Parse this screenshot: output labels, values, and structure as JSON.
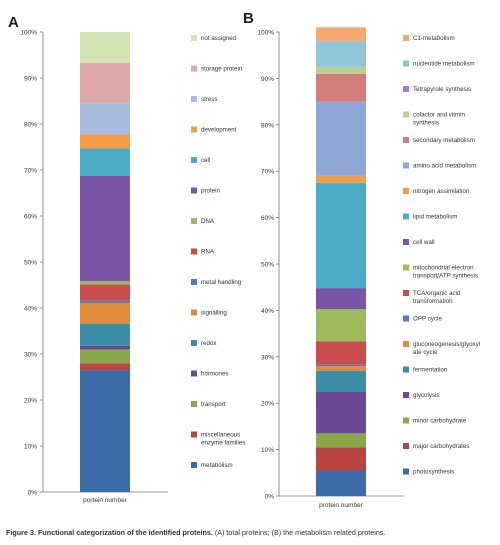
{
  "panels": [
    {
      "letter": "A",
      "xlabel": "portein number",
      "yticks": [
        "0%",
        "10%",
        "20%",
        "30%",
        "40%",
        "50%",
        "60%",
        "70%",
        "80%",
        "90%",
        "100%"
      ]
    },
    {
      "letter": "B",
      "xlabel": "protein number",
      "yticks": [
        "0%",
        "10%",
        "20%",
        "30%",
        "40%",
        "50%",
        "60%",
        "70%",
        "80%",
        "90%",
        "100%"
      ]
    }
  ],
  "chart_data": [
    {
      "type": "bar",
      "stacked": true,
      "percent": true,
      "categories": [
        "portein number"
      ],
      "ylim": [
        0,
        100
      ],
      "grid": false,
      "legend_position": "right",
      "series": [
        {
          "name": "metabolism",
          "color": "#3d6aa8",
          "values": [
            26.5
          ]
        },
        {
          "name": "miscellaneous enzyme families",
          "color": "#b94440",
          "values": [
            1.5
          ]
        },
        {
          "name": "transport",
          "color": "#89a849",
          "values": [
            3.0
          ]
        },
        {
          "name": "hormones",
          "color": "#6c4a95",
          "values": [
            0.8
          ]
        },
        {
          "name": "redox",
          "color": "#3a8fa6",
          "values": [
            4.8
          ]
        },
        {
          "name": "signalling",
          "color": "#e08a3a",
          "values": [
            4.5
          ]
        },
        {
          "name": "metal handling",
          "color": "#4c7cc4",
          "values": [
            0.5
          ]
        },
        {
          "name": "RNA",
          "color": "#c94d4a",
          "values": [
            3.5
          ]
        },
        {
          "name": "DNA",
          "color": "#9dbb5d",
          "values": [
            0.7
          ]
        },
        {
          "name": "protein",
          "color": "#7b56a8",
          "values": [
            22.9
          ]
        },
        {
          "name": "cell",
          "color": "#4bacc6",
          "values": [
            6.0
          ]
        },
        {
          "name": "development",
          "color": "#f49c46",
          "values": [
            3.0
          ]
        },
        {
          "name": "stress",
          "color": "#a9bbdf",
          "values": [
            6.8
          ]
        },
        {
          "name": "storage protein",
          "color": "#deaaaa",
          "values": [
            8.8
          ]
        },
        {
          "name": "not assigned",
          "color": "#d2e3b4",
          "values": [
            6.7
          ]
        }
      ]
    },
    {
      "type": "bar",
      "stacked": true,
      "percent": true,
      "categories": [
        "protein number"
      ],
      "ylim": [
        0,
        100
      ],
      "grid": false,
      "legend_position": "right",
      "series": [
        {
          "name": "photosynthesis",
          "color": "#3d6aa8",
          "values": [
            5.5
          ]
        },
        {
          "name": "major carbohydrates",
          "color": "#b94440",
          "values": [
            5.0
          ]
        },
        {
          "name": "minor carbohydrate",
          "color": "#89a849",
          "values": [
            3.0
          ]
        },
        {
          "name": "glycolysis",
          "color": "#6c4a95",
          "values": [
            9.0
          ]
        },
        {
          "name": "fermentation",
          "color": "#3a8fa6",
          "values": [
            4.5
          ]
        },
        {
          "name": "gluconeogenesis/glyoxylate cycle",
          "color": "#e08a3a",
          "values": [
            1.0
          ]
        },
        {
          "name": "OPP cycle",
          "color": "#4c7cc4",
          "values": [
            0.3
          ]
        },
        {
          "name": "TCA/organic acid transformation",
          "color": "#c94d4a",
          "values": [
            5.0
          ]
        },
        {
          "name": "mitochondrial electron transport/ATP synthesis",
          "color": "#9dbb5d",
          "values": [
            7.0
          ]
        },
        {
          "name": "cell wall",
          "color": "#7b56a8",
          "values": [
            4.5
          ]
        },
        {
          "name": "lipid metabolism",
          "color": "#4bacc6",
          "values": [
            22.7
          ]
        },
        {
          "name": "nitrogen assimilation",
          "color": "#f49c46",
          "values": [
            1.5
          ]
        },
        {
          "name": "amino acid metabolism",
          "color": "#8fa7d6",
          "values": [
            16.0
          ]
        },
        {
          "name": "secondary metabolism",
          "color": "#d27d7b",
          "values": [
            6.0
          ]
        },
        {
          "name": "cofactor and vitmin synthesis",
          "color": "#b9d08e",
          "values": [
            1.5
          ]
        },
        {
          "name": "Tetrapyrole synthesis",
          "color": "#9c82c0",
          "values": [
            0.0
          ]
        },
        {
          "name": "nucleotide metabolism",
          "color": "#8fc6dc",
          "values": [
            5.5
          ]
        },
        {
          "name": "C1-metabolism",
          "color": "#f6a96c",
          "values": [
            3.0
          ]
        }
      ]
    }
  ],
  "legend_text": [
    [
      "not assigned",
      "storage protein",
      "stress",
      "development",
      "cell",
      "protein",
      "DNA",
      "RNA",
      "metal handling",
      "signalling",
      "redox",
      "hormones",
      "transport",
      "miscellaneous\nenzyme families",
      "metabolism"
    ],
    [
      "C1-metabolism",
      "nucleotide metabolism",
      "Tetrapyrole synthesis",
      "cofactor and vitmin\nsynthesis",
      "secondary metabolism",
      "amino acid metabolism",
      "nitrogen assimilation",
      "lipid metabolism",
      "cell wall",
      "mitochondrial electron\ntransport/ATP synthesis",
      "TCA/organic acid\ntransformation",
      "OPP cycle",
      "gluconeogenesis/glyoxyl\nate cycle",
      "fermentation",
      "glycolysis",
      "minor carbohydrate",
      "major carbohydrates",
      "photosynthesis"
    ]
  ],
  "caption": {
    "bold": "Figure 3. Functional categorization of the identified proteins.",
    "normal": " (A) total proteins; (B) the metabolism related proteins."
  }
}
